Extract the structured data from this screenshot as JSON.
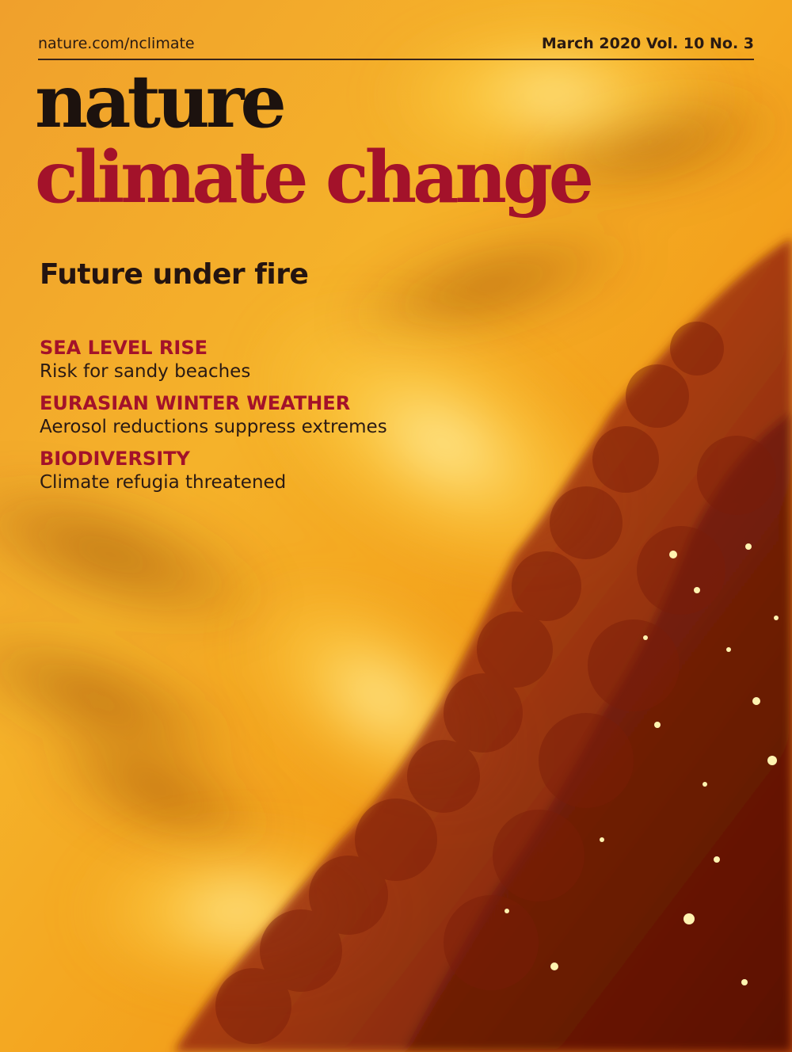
{
  "cover": {
    "url": "nature.com/nclimate",
    "issue": "March 2020 Vol. 10 No. 3",
    "masthead_line1": "nature",
    "masthead_line2": "climate change",
    "headline": "Future under fire",
    "teasers": [
      {
        "topic": "SEA LEVEL RISE",
        "text": "Risk for sandy beaches"
      },
      {
        "topic": "EURASIAN WINTER WEATHER",
        "text": "Aerosol reductions suppress extremes"
      },
      {
        "topic": "BIODIVERSITY",
        "text": "Climate refugia threatened"
      }
    ]
  },
  "colors": {
    "masthead_red": "#a3122a",
    "masthead_black": "#1c120e",
    "fire_orange": "#f2a21e"
  }
}
